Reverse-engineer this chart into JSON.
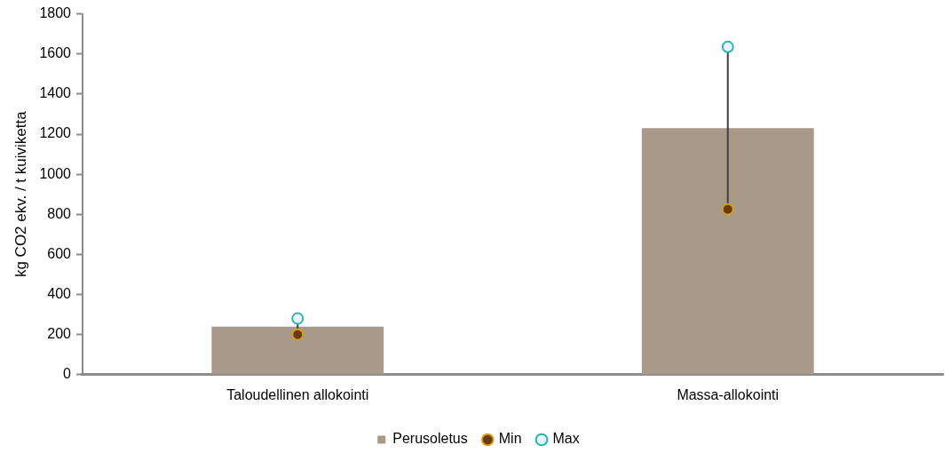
{
  "chart_data": {
    "type": "bar",
    "ylabel": "kg CO2 ekv. / t kuiviketta",
    "categories": [
      "Taloudellinen allokointi",
      "Massa-allokointi"
    ],
    "series": [
      {
        "name": "Perusoletus",
        "type": "bar",
        "color": "#a89988",
        "values": [
          240,
          1230
        ]
      },
      {
        "name": "Min",
        "type": "scatter",
        "color": "#6b3a12",
        "x": [
          "Taloudellinen allokointi",
          "Massa-allokointi"
        ],
        "values": [
          200,
          825
        ]
      },
      {
        "name": "Max",
        "type": "scatter",
        "color": "#2ab3b3",
        "x": [
          "Taloudellinen allokointi",
          "Massa-allokointi"
        ],
        "values": [
          280,
          1635
        ]
      }
    ],
    "ylim": [
      0,
      1800
    ],
    "yticks": [
      0,
      200,
      400,
      600,
      800,
      1000,
      1200,
      1400,
      1600,
      1800
    ],
    "grid": false,
    "legend": "bottom",
    "marker": "circle"
  }
}
